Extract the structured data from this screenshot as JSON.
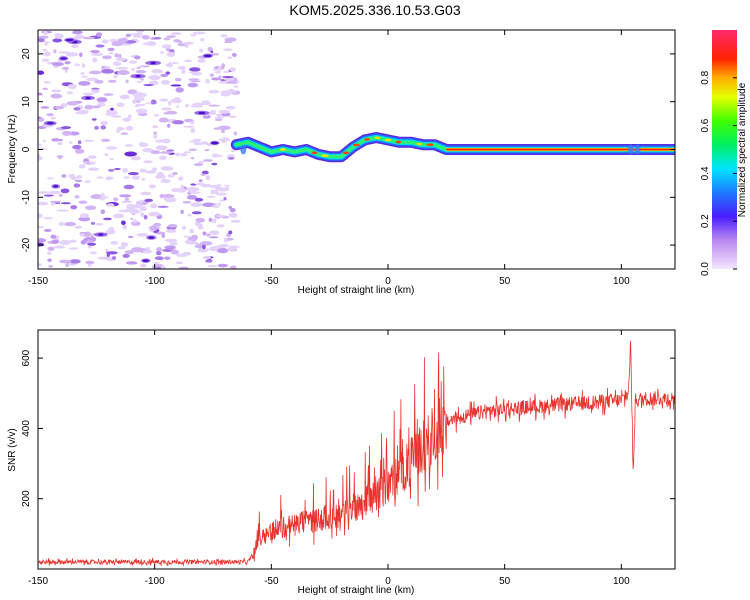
{
  "title": "KOM5.2025.336.10.53.G03",
  "chart_data": [
    {
      "type": "heatmap",
      "name": "spectrogram",
      "xlabel": "Height of straight line (km)",
      "ylabel": "Frequency (Hz)",
      "xlim": [
        -150,
        123
      ],
      "ylim": [
        -25,
        25
      ],
      "xticks": [
        -150,
        -100,
        -50,
        0,
        50,
        100
      ],
      "yticks": [
        -20,
        -10,
        0,
        10,
        20
      ],
      "noise_region_x": [
        -150,
        -65
      ],
      "signal_track": {
        "x": [
          -65,
          -60,
          -55,
          -50,
          -45,
          -40,
          -35,
          -30,
          -25,
          -20,
          -15,
          -10,
          -5,
          0,
          5,
          10,
          15,
          20,
          25,
          30,
          123
        ],
        "y": [
          1,
          1.5,
          0.5,
          -0.5,
          0,
          -0.5,
          0,
          -1,
          -1.5,
          -1.5,
          0.5,
          2,
          2.5,
          2,
          1.5,
          1.5,
          1,
          1,
          0,
          0,
          0
        ]
      },
      "colorbar": {
        "label": "Normalized spectral amplitude",
        "range": [
          0,
          1
        ],
        "ticks": [
          0.0,
          0.2,
          0.4,
          0.6,
          0.8
        ],
        "tick_labels": [
          "0.0",
          "0.2",
          "0.4",
          "0.6",
          "0.8"
        ]
      }
    },
    {
      "type": "line",
      "name": "snr",
      "xlabel": "Height of straight line (km)",
      "ylabel": "SNR (v/v)",
      "xlim": [
        -150,
        123
      ],
      "ylim": [
        0,
        680
      ],
      "xticks": [
        -150,
        -100,
        -50,
        0,
        50,
        100
      ],
      "yticks": [
        200,
        400,
        600
      ],
      "color": "#e8332d",
      "trend": {
        "x": [
          -150,
          -60,
          -58,
          -55,
          -50,
          -45,
          -40,
          -35,
          -30,
          -25,
          -20,
          -15,
          -10,
          -5,
          0,
          5,
          10,
          15,
          20,
          25,
          30,
          40,
          50,
          60,
          70,
          80,
          90,
          100,
          103,
          104,
          105,
          106,
          110,
          123
        ],
        "y": [
          20,
          20,
          40,
          90,
          110,
          120,
          125,
          135,
          140,
          150,
          155,
          175,
          195,
          215,
          240,
          270,
          305,
          345,
          385,
          420,
          430,
          445,
          455,
          460,
          465,
          470,
          475,
          480,
          500,
          650,
          270,
          480,
          485,
          485
        ]
      }
    }
  ]
}
